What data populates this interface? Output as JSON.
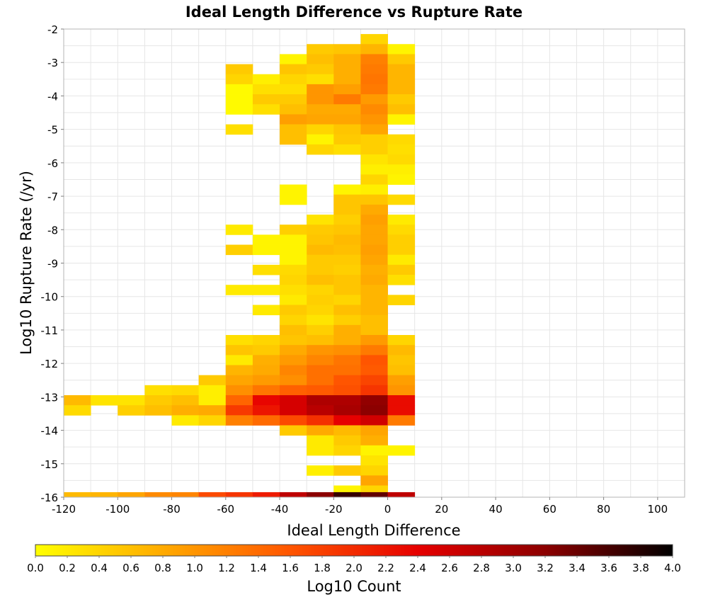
{
  "chart_data": {
    "type": "heatmap",
    "title": "Ideal Length Difference vs Rupture Rate",
    "xlabel": "Ideal Length Difference",
    "ylabel": "Log10 Rupture Rate (/yr)",
    "xlim": [
      -120,
      110
    ],
    "ylim": [
      -16,
      -2
    ],
    "x_ticks": [
      "-120",
      "-100",
      "-80",
      "-60",
      "-40",
      "-20",
      "0",
      "20",
      "40",
      "60",
      "80",
      "100"
    ],
    "y_ticks": [
      "-2",
      "-3",
      "-4",
      "-5",
      "-6",
      "-7",
      "-8",
      "-9",
      "-10",
      "-11",
      "-12",
      "-13",
      "-14",
      "-15",
      "-16"
    ],
    "grid": true,
    "x_bin_width": 10,
    "y_bin_height": 0.3,
    "colorbar": {
      "label": "Log10 Count",
      "range": [
        0.0,
        4.0
      ],
      "ticks": [
        "0.0",
        "0.2",
        "0.4",
        "0.6",
        "0.8",
        "1.0",
        "1.2",
        "1.4",
        "1.6",
        "1.8",
        "2.0",
        "2.2",
        "2.4",
        "2.6",
        "2.8",
        "3.0",
        "3.2",
        "3.4",
        "3.6",
        "3.8",
        "4.0"
      ],
      "stops": [
        "#ffff00",
        "#ffaa00",
        "#ff5500",
        "#e60000",
        "#8c0000",
        "#000000"
      ]
    },
    "rows": [
      {
        "y": -2.3,
        "cells": [
          [
            -10,
            0.4
          ]
        ]
      },
      {
        "y": -2.6,
        "cells": [
          [
            -30,
            0.5
          ],
          [
            -20,
            0.55
          ],
          [
            -10,
            0.7
          ],
          [
            0,
            0.1
          ]
        ]
      },
      {
        "y": -2.9,
        "cells": [
          [
            -40,
            0.1
          ],
          [
            -30,
            0.6
          ],
          [
            -20,
            0.75
          ],
          [
            -10,
            1.2
          ],
          [
            0,
            0.5
          ]
        ]
      },
      {
        "y": -3.2,
        "cells": [
          [
            -60,
            0.5
          ],
          [
            -40,
            0.55
          ],
          [
            -30,
            0.5
          ],
          [
            -20,
            0.75
          ],
          [
            -10,
            1.25
          ],
          [
            0,
            0.7
          ]
        ]
      },
      {
        "y": -3.5,
        "cells": [
          [
            -60,
            0.4
          ],
          [
            -50,
            0.15
          ],
          [
            -40,
            0.4
          ],
          [
            -30,
            0.3
          ],
          [
            -20,
            0.75
          ],
          [
            -10,
            1.3
          ],
          [
            0,
            0.7
          ]
        ]
      },
      {
        "y": -3.8,
        "cells": [
          [
            -60,
            0.05
          ],
          [
            -50,
            0.3
          ],
          [
            -40,
            0.3
          ],
          [
            -30,
            1.0
          ],
          [
            -20,
            0.9
          ],
          [
            -10,
            1.25
          ],
          [
            0,
            0.7
          ]
        ]
      },
      {
        "y": -4.1,
        "cells": [
          [
            -60,
            0.05
          ],
          [
            -50,
            0.5
          ],
          [
            -40,
            0.5
          ],
          [
            -30,
            1.0
          ],
          [
            -20,
            1.25
          ],
          [
            -10,
            0.95
          ],
          [
            0,
            0.5
          ]
        ]
      },
      {
        "y": -4.4,
        "cells": [
          [
            -60,
            0.05
          ],
          [
            -50,
            0.3
          ],
          [
            -40,
            0.6
          ],
          [
            -30,
            0.8
          ],
          [
            -20,
            0.8
          ],
          [
            -10,
            1.1
          ],
          [
            0,
            0.6
          ]
        ]
      },
      {
        "y": -4.7,
        "cells": [
          [
            -40,
            0.9
          ],
          [
            -30,
            0.85
          ],
          [
            -20,
            0.85
          ],
          [
            -10,
            1.0
          ],
          [
            0,
            0.1
          ]
        ]
      },
      {
        "y": -5.0,
        "cells": [
          [
            -60,
            0.3
          ],
          [
            -40,
            0.6
          ],
          [
            -30,
            0.4
          ],
          [
            -20,
            0.55
          ],
          [
            -10,
            0.85
          ]
        ]
      },
      {
        "y": -5.3,
        "cells": [
          [
            -40,
            0.6
          ],
          [
            -30,
            0.1
          ],
          [
            -20,
            0.5
          ],
          [
            -10,
            0.45
          ],
          [
            0,
            0.35
          ]
        ]
      },
      {
        "y": -5.6,
        "cells": [
          [
            -30,
            0.4
          ],
          [
            -20,
            0.3
          ],
          [
            -10,
            0.45
          ],
          [
            0,
            0.3
          ]
        ]
      },
      {
        "y": -5.9,
        "cells": [
          [
            -10,
            0.25
          ],
          [
            0,
            0.35
          ]
        ]
      },
      {
        "y": -6.2,
        "cells": [
          [
            -10,
            0.15
          ],
          [
            0,
            0.15
          ]
        ]
      },
      {
        "y": -6.5,
        "cells": [
          [
            -10,
            0.4
          ],
          [
            0,
            0.1
          ]
        ]
      },
      {
        "y": -6.8,
        "cells": [
          [
            -40,
            0.1
          ],
          [
            -20,
            0.1
          ],
          [
            -10,
            0.15
          ]
        ]
      },
      {
        "y": -7.1,
        "cells": [
          [
            -40,
            0.1
          ],
          [
            -20,
            0.55
          ],
          [
            -10,
            0.55
          ],
          [
            0,
            0.35
          ]
        ]
      },
      {
        "y": -7.4,
        "cells": [
          [
            -20,
            0.55
          ],
          [
            -10,
            0.8
          ]
        ]
      },
      {
        "y": -7.7,
        "cells": [
          [
            -30,
            0.25
          ],
          [
            -20,
            0.45
          ],
          [
            -10,
            0.9
          ],
          [
            0,
            0.2
          ]
        ]
      },
      {
        "y": -8.0,
        "cells": [
          [
            -60,
            0.2
          ],
          [
            -40,
            0.45
          ],
          [
            -30,
            0.5
          ],
          [
            -20,
            0.55
          ],
          [
            -10,
            0.85
          ],
          [
            0,
            0.35
          ]
        ]
      },
      {
        "y": -8.3,
        "cells": [
          [
            -50,
            0.1
          ],
          [
            -40,
            0.1
          ],
          [
            -30,
            0.55
          ],
          [
            -20,
            0.65
          ],
          [
            -10,
            0.85
          ],
          [
            0,
            0.45
          ]
        ]
      },
      {
        "y": -8.6,
        "cells": [
          [
            -60,
            0.45
          ],
          [
            -50,
            0.1
          ],
          [
            -40,
            0.1
          ],
          [
            -30,
            0.65
          ],
          [
            -20,
            0.6
          ],
          [
            -10,
            0.9
          ],
          [
            0,
            0.45
          ]
        ]
      },
      {
        "y": -8.9,
        "cells": [
          [
            -40,
            0.1
          ],
          [
            -30,
            0.5
          ],
          [
            -20,
            0.5
          ],
          [
            -10,
            0.85
          ],
          [
            0,
            0.2
          ]
        ]
      },
      {
        "y": -9.2,
        "cells": [
          [
            -50,
            0.3
          ],
          [
            -40,
            0.35
          ],
          [
            -30,
            0.5
          ],
          [
            -20,
            0.45
          ],
          [
            -10,
            0.75
          ],
          [
            0,
            0.5
          ]
        ]
      },
      {
        "y": -9.5,
        "cells": [
          [
            -40,
            0.4
          ],
          [
            -30,
            0.6
          ],
          [
            -20,
            0.55
          ],
          [
            -10,
            0.8
          ],
          [
            0,
            0.3
          ]
        ]
      },
      {
        "y": -9.8,
        "cells": [
          [
            -60,
            0.2
          ],
          [
            -50,
            0.2
          ],
          [
            -40,
            0.3
          ],
          [
            -30,
            0.4
          ],
          [
            -20,
            0.55
          ],
          [
            -10,
            0.7
          ]
        ]
      },
      {
        "y": -10.1,
        "cells": [
          [
            -40,
            0.2
          ],
          [
            -30,
            0.45
          ],
          [
            -20,
            0.4
          ],
          [
            -10,
            0.7
          ],
          [
            0,
            0.4
          ]
        ]
      },
      {
        "y": -10.4,
        "cells": [
          [
            -50,
            0.2
          ],
          [
            -40,
            0.5
          ],
          [
            -30,
            0.4
          ],
          [
            -20,
            0.6
          ],
          [
            -10,
            0.7
          ]
        ]
      },
      {
        "y": -10.7,
        "cells": [
          [
            -40,
            0.4
          ],
          [
            -30,
            0.25
          ],
          [
            -20,
            0.45
          ],
          [
            -10,
            0.6
          ]
        ]
      },
      {
        "y": -11.0,
        "cells": [
          [
            -40,
            0.6
          ],
          [
            -30,
            0.45
          ],
          [
            -20,
            0.75
          ],
          [
            -10,
            0.6
          ]
        ]
      },
      {
        "y": -11.3,
        "cells": [
          [
            -60,
            0.3
          ],
          [
            -50,
            0.4
          ],
          [
            -40,
            0.55
          ],
          [
            -30,
            0.6
          ],
          [
            -20,
            0.75
          ],
          [
            -10,
            0.95
          ],
          [
            0,
            0.4
          ]
        ]
      },
      {
        "y": -11.6,
        "cells": [
          [
            -60,
            0.55
          ],
          [
            -50,
            0.5
          ],
          [
            -40,
            0.8
          ],
          [
            -30,
            1.0
          ],
          [
            -20,
            1.05
          ],
          [
            -10,
            1.25
          ],
          [
            0,
            0.65
          ]
        ]
      },
      {
        "y": -11.9,
        "cells": [
          [
            -60,
            0.2
          ],
          [
            -50,
            0.75
          ],
          [
            -40,
            0.95
          ],
          [
            -30,
            1.15
          ],
          [
            -20,
            1.3
          ],
          [
            -10,
            1.6
          ],
          [
            0,
            0.55
          ]
        ]
      },
      {
        "y": -12.2,
        "cells": [
          [
            -60,
            0.7
          ],
          [
            -50,
            0.8
          ],
          [
            -40,
            1.15
          ],
          [
            -30,
            1.35
          ],
          [
            -20,
            1.35
          ],
          [
            -10,
            1.55
          ],
          [
            0,
            0.6
          ]
        ]
      },
      {
        "y": -12.5,
        "cells": [
          [
            -70,
            0.5
          ],
          [
            -60,
            0.85
          ],
          [
            -50,
            0.95
          ],
          [
            -40,
            1.05
          ],
          [
            -30,
            1.35
          ],
          [
            -20,
            1.6
          ],
          [
            -10,
            1.75
          ],
          [
            0,
            0.9
          ]
        ]
      },
      {
        "y": -12.8,
        "cells": [
          [
            -90,
            0.3
          ],
          [
            -80,
            0.35
          ],
          [
            -70,
            0.15
          ],
          [
            -60,
            1.05
          ],
          [
            -50,
            1.3
          ],
          [
            -40,
            1.5
          ],
          [
            -30,
            1.55
          ],
          [
            -20,
            1.65
          ],
          [
            -10,
            1.9
          ],
          [
            0,
            1.0
          ]
        ]
      },
      {
        "y": -13.1,
        "cells": [
          [
            -120,
            0.65
          ],
          [
            -110,
            0.25
          ],
          [
            -100,
            0.25
          ],
          [
            -90,
            0.5
          ],
          [
            -80,
            0.6
          ],
          [
            -70,
            0.15
          ],
          [
            -60,
            1.45
          ],
          [
            -50,
            2.35
          ],
          [
            -40,
            2.55
          ],
          [
            -30,
            2.9
          ],
          [
            -20,
            2.9
          ],
          [
            -10,
            3.15
          ],
          [
            0,
            2.3
          ]
        ]
      },
      {
        "y": -13.4,
        "cells": [
          [
            -120,
            0.35
          ],
          [
            -100,
            0.45
          ],
          [
            -90,
            0.6
          ],
          [
            -80,
            0.75
          ],
          [
            -70,
            0.8
          ],
          [
            -60,
            1.85
          ],
          [
            -50,
            2.2
          ],
          [
            -40,
            2.55
          ],
          [
            -30,
            2.8
          ],
          [
            -20,
            2.95
          ],
          [
            -10,
            3.2
          ],
          [
            0,
            2.3
          ]
        ]
      },
      {
        "y": -13.7,
        "cells": [
          [
            -80,
            0.2
          ],
          [
            -70,
            0.4
          ],
          [
            -60,
            1.2
          ],
          [
            -50,
            1.4
          ],
          [
            -40,
            1.7
          ],
          [
            -30,
            1.95
          ],
          [
            -20,
            2.4
          ],
          [
            -10,
            2.6
          ],
          [
            0,
            1.25
          ]
        ]
      },
      {
        "y": -14.0,
        "cells": [
          [
            -40,
            0.5
          ],
          [
            -30,
            0.8
          ],
          [
            -20,
            0.65
          ],
          [
            -10,
            0.85
          ]
        ]
      },
      {
        "y": -14.3,
        "cells": [
          [
            -30,
            0.2
          ],
          [
            -20,
            0.5
          ],
          [
            -10,
            0.75
          ]
        ]
      },
      {
        "y": -14.6,
        "cells": [
          [
            -30,
            0.2
          ],
          [
            -20,
            0.4
          ],
          [
            -10,
            0.1
          ],
          [
            0,
            0.1
          ]
        ]
      },
      {
        "y": -14.9,
        "cells": [
          [
            -10,
            0.25
          ]
        ]
      },
      {
        "y": -15.2,
        "cells": [
          [
            -30,
            0.15
          ],
          [
            -20,
            0.5
          ],
          [
            -10,
            0.4
          ]
        ]
      },
      {
        "y": -15.5,
        "cells": [
          [
            -10,
            0.85
          ]
        ]
      },
      {
        "y": -15.8,
        "cells": [
          [
            -20,
            0.1
          ],
          [
            -10,
            0.4
          ]
        ]
      },
      {
        "y": -16.0,
        "cells": [
          [
            -120,
            0.65
          ],
          [
            -110,
            0.7
          ],
          [
            -100,
            0.85
          ],
          [
            -90,
            1.1
          ],
          [
            -80,
            1.15
          ],
          [
            -70,
            1.7
          ],
          [
            -60,
            1.9
          ],
          [
            -50,
            2.15
          ],
          [
            -40,
            2.75
          ],
          [
            -30,
            3.2
          ],
          [
            -20,
            3.7
          ],
          [
            -10,
            3.45
          ],
          [
            0,
            2.75
          ]
        ]
      }
    ]
  }
}
